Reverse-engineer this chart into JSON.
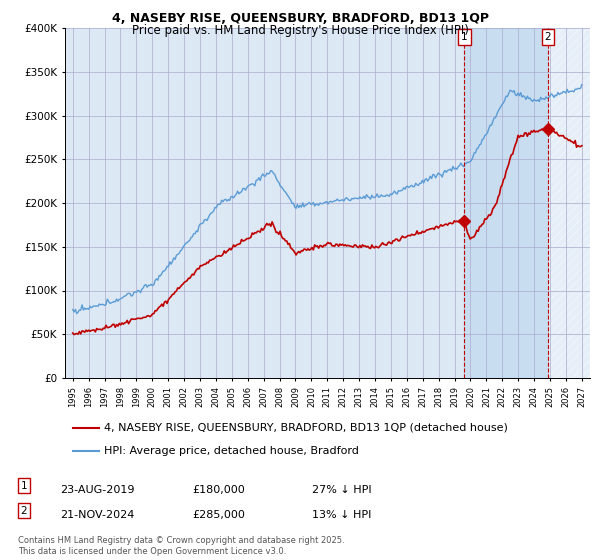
{
  "title": "4, NASEBY RISE, QUEENSBURY, BRADFORD, BD13 1QP",
  "subtitle": "Price paid vs. HM Land Registry's House Price Index (HPI)",
  "ylim": [
    0,
    400000
  ],
  "yticks": [
    0,
    50000,
    100000,
    150000,
    200000,
    250000,
    300000,
    350000,
    400000
  ],
  "ytick_labels": [
    "£0",
    "£50K",
    "£100K",
    "£150K",
    "£200K",
    "£250K",
    "£300K",
    "£350K",
    "£400K"
  ],
  "hpi_color": "#5b9bd5",
  "price_color": "#c00000",
  "background_color": "#ffffff",
  "plot_bg_color": "#dce9f5",
  "grid_color": "#aaaacc",
  "shaded_region_color": "#dce9f5",
  "legend_entries": [
    "4, NASEBY RISE, QUEENSBURY, BRADFORD, BD13 1QP (detached house)",
    "HPI: Average price, detached house, Bradford"
  ],
  "sale1_date": "23-AUG-2019",
  "sale1_price": "£180,000",
  "sale1_hpi": "27% ↓ HPI",
  "sale2_date": "21-NOV-2024",
  "sale2_price": "£285,000",
  "sale2_hpi": "13% ↓ HPI",
  "footnote": "Contains HM Land Registry data © Crown copyright and database right 2025.\nThis data is licensed under the Open Government Licence v3.0.",
  "sale1_x": 2019.622,
  "sale1_y": 180000,
  "sale2_x": 2024.876,
  "sale2_y": 285000,
  "xlim_left": 1994.5,
  "xlim_right": 2027.5,
  "title_fontsize": 9,
  "subtitle_fontsize": 8.5,
  "tick_fontsize": 7.5,
  "legend_fontsize": 8
}
